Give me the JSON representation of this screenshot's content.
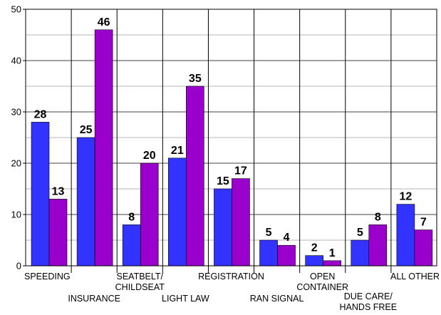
{
  "chart_data": {
    "type": "bar",
    "categories": [
      [
        "SPEEDING"
      ],
      [
        "INSURANCE"
      ],
      [
        "SEATBELT/",
        "CHILDSEAT"
      ],
      [
        "LIGHT LAW"
      ],
      [
        "REGISTRATION"
      ],
      [
        "RAN SIGNAL"
      ],
      [
        "OPEN",
        "CONTAINER"
      ],
      [
        "DUE CARE/",
        "HANDS FREE"
      ],
      [
        "ALL OTHER"
      ]
    ],
    "series": [
      {
        "values": [
          28,
          25,
          8,
          21,
          15,
          5,
          2,
          5,
          12
        ],
        "color": "#3333ff"
      },
      {
        "values": [
          13,
          46,
          20,
          35,
          17,
          4,
          1,
          8,
          7
        ],
        "color": "#9900cc"
      }
    ],
    "ylim": [
      0,
      50
    ],
    "yticks": [
      0,
      10,
      20,
      30,
      40,
      50
    ],
    "grid": true,
    "xlabel": "",
    "ylabel": "",
    "title": ""
  }
}
